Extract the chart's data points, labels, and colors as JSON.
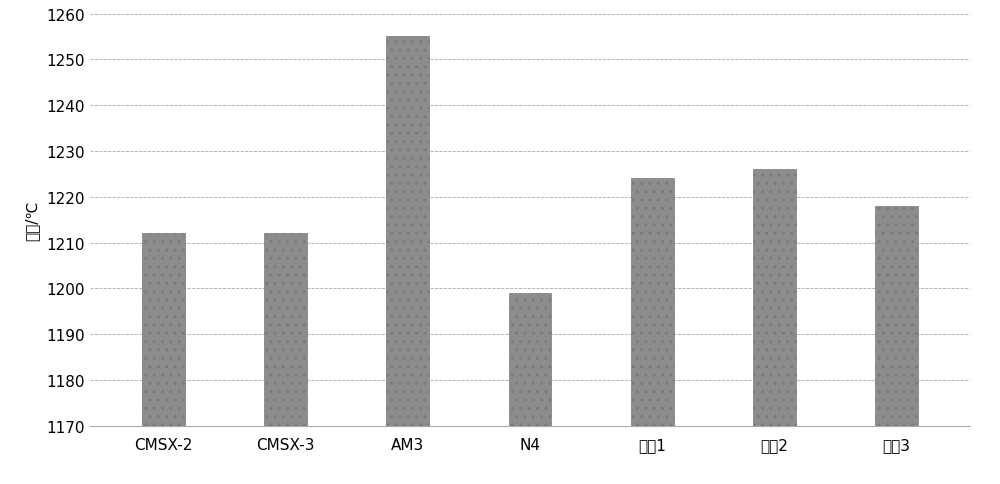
{
  "categories": [
    "CMSX-2",
    "CMSX-3",
    "AM3",
    "N4",
    "合金1",
    "合金2",
    "合金3"
  ],
  "values": [
    1212,
    1212,
    1255,
    1199,
    1224,
    1226,
    1218
  ],
  "bar_color": "#8c8c8c",
  "ylabel": "温度/℃",
  "ylim": [
    1170,
    1260
  ],
  "yticks": [
    1170,
    1180,
    1190,
    1200,
    1210,
    1220,
    1230,
    1240,
    1250,
    1260
  ],
  "background_color": "#ffffff",
  "grid_color": "#aaaaaa",
  "bar_width": 0.35,
  "ylabel_fontsize": 11,
  "tick_fontsize": 11,
  "hatch": ".."
}
